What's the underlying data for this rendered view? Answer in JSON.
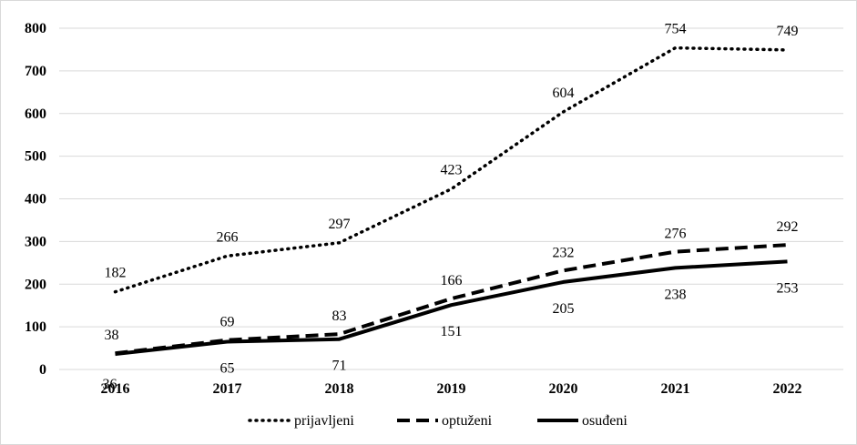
{
  "chart_data": {
    "type": "line",
    "categories": [
      "2016",
      "2017",
      "2018",
      "2019",
      "2020",
      "2021",
      "2022"
    ],
    "ylim": [
      0,
      800
    ],
    "yticks": [
      0,
      100,
      200,
      300,
      400,
      500,
      600,
      700,
      800
    ],
    "grid": true,
    "legend_position": "bottom",
    "series": [
      {
        "name": "prijavljeni",
        "style": "dotted",
        "color": "#000000",
        "values": [
          182,
          266,
          297,
          423,
          604,
          754,
          749
        ]
      },
      {
        "name": "optuženi",
        "style": "dashed",
        "color": "#000000",
        "values": [
          38,
          69,
          83,
          166,
          232,
          276,
          292
        ]
      },
      {
        "name": "osuđeni",
        "style": "solid",
        "color": "#000000",
        "values": [
          36,
          65,
          71,
          151,
          205,
          238,
          253
        ]
      }
    ]
  }
}
